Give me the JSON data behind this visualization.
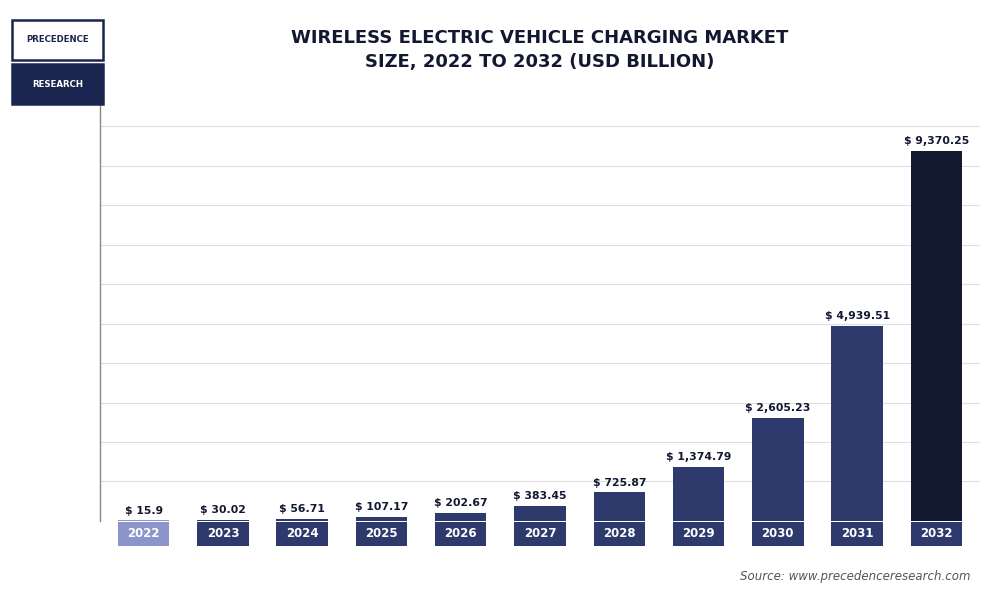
{
  "title_line1": "WIRELESS ELECTRIC VEHICLE CHARGING MARKET",
  "title_line2": "SIZE, 2022 TO 2032 (USD BILLION)",
  "categories": [
    "2022",
    "2023",
    "2024",
    "2025",
    "2026",
    "2027",
    "2028",
    "2029",
    "2030",
    "2031",
    "2032"
  ],
  "values": [
    15.9,
    30.02,
    56.71,
    107.17,
    202.67,
    383.45,
    725.87,
    1374.79,
    2605.23,
    4939.51,
    9370.25
  ],
  "labels": [
    "$ 15.9",
    "$ 30.02",
    "$ 56.71",
    "$ 107.17",
    "$ 202.67",
    "$ 383.45",
    "$ 725.87",
    "$ 1,374.79",
    "$ 2,605.23",
    "$ 4,939.51",
    "$ 9,370.25"
  ],
  "bar_colors": [
    "#8b95c9",
    "#2d3a6b",
    "#2d3a6b",
    "#2d3a6b",
    "#2d3a6b",
    "#2d3a6b",
    "#2d3a6b",
    "#2d3a6b",
    "#2d3a6b",
    "#2d3a6b",
    "#111830"
  ],
  "tick_label_bg_2022": "#8b95c9",
  "tick_label_bg_rest": "#2d3a6b",
  "background_color": "#ffffff",
  "plot_bg_color": "#ffffff",
  "title_color": "#111830",
  "bar_label_color": "#111830",
  "source_text": "Source: www.precedenceresearch.com",
  "logo_text_top": "PRECEDENCE",
  "logo_text_bottom": "RESEARCH",
  "ylim": [
    0,
    10800
  ],
  "grid_color": "#e0e0e0",
  "logo_border_color": "#1a2550",
  "logo_fill_color": "#1a2550"
}
